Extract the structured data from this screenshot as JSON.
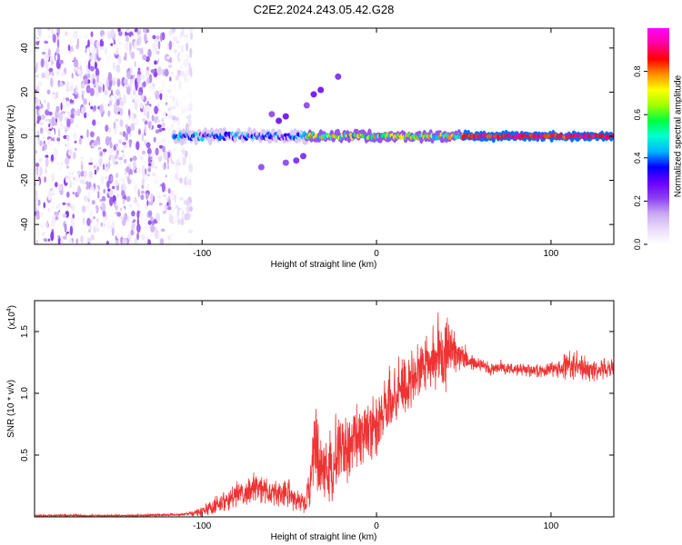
{
  "figure": {
    "title": "C2E2.2024.243.05.42.G28"
  },
  "chart_data": [
    {
      "type": "heatmap",
      "title": "C2E2.2024.243.05.42.G28",
      "xlabel": "Height of straight line (km)",
      "ylabel": "Frequency (Hz)",
      "xlim": [
        -196,
        136
      ],
      "ylim": [
        -49,
        49
      ],
      "x_ticks": [
        -100,
        0,
        100
      ],
      "y_ticks": [
        -40,
        -20,
        0,
        20,
        40
      ],
      "grid": false,
      "colorbar": {
        "label": "Normalized spectral amplitude",
        "range": [
          0,
          1
        ],
        "ticks": [
          "0.0",
          "0.2",
          "0.4",
          "0.6",
          "0.8"
        ],
        "colormap": [
          "#ffffff",
          "#e9dcfa",
          "#c8a8f2",
          "#8a3ff0",
          "#6a00ff",
          "#0000ff",
          "#00b4ff",
          "#00ffd0",
          "#00ff40",
          "#a0ff00",
          "#ffff00",
          "#ff9000",
          "#ff0000",
          "#ff00a0",
          "#ff00ff"
        ]
      },
      "regions": [
        {
          "name": "noise",
          "x_range": [
            -196,
            -106
          ],
          "y_range": [
            -49,
            49
          ],
          "amplitude": [
            0.0,
            0.22
          ]
        },
        {
          "name": "carrier-weak",
          "x_range": [
            -116,
            -40
          ],
          "frequency_hz": 0,
          "amplitude": [
            0.2,
            0.5
          ]
        },
        {
          "name": "carrier-mid",
          "x_range": [
            -40,
            50
          ],
          "frequency_hz": 0,
          "amplitude": [
            0.4,
            0.8
          ]
        },
        {
          "name": "carrier-strong",
          "x_range": [
            50,
            136
          ],
          "frequency_hz": 0,
          "amplitude": [
            0.8,
            0.95
          ]
        }
      ],
      "features": [
        {
          "x": -60,
          "y": 10,
          "amplitude": 0.2
        },
        {
          "x": -56,
          "y": 7,
          "amplitude": 0.25
        },
        {
          "x": -52,
          "y": 9,
          "amplitude": 0.25
        },
        {
          "x": -40,
          "y": 14,
          "amplitude": 0.2
        },
        {
          "x": -36,
          "y": 19,
          "amplitude": 0.25
        },
        {
          "x": -32,
          "y": 21,
          "amplitude": 0.25
        },
        {
          "x": -22,
          "y": 27,
          "amplitude": 0.22
        },
        {
          "x": -66,
          "y": -14,
          "amplitude": 0.2
        },
        {
          "x": -52,
          "y": -12,
          "amplitude": 0.2
        },
        {
          "x": -46,
          "y": -11,
          "amplitude": 0.22
        },
        {
          "x": -42,
          "y": -9,
          "amplitude": 0.22
        }
      ]
    },
    {
      "type": "line",
      "xlabel": "Height of straight line (km)",
      "ylabel": "SNR (10 * v/v)",
      "y_multiplier": "(x10",
      "y_multiplier_exponent": "4",
      "y_multiplier_close": ")",
      "xlim": [
        -196,
        136
      ],
      "ylim": [
        0,
        1.75
      ],
      "x_ticks": [
        -100,
        0,
        100
      ],
      "y_ticks": [
        "0.5",
        "1.0",
        "1.5"
      ],
      "grid": false,
      "series": [
        {
          "color": "#ee3333",
          "x": [
            -196,
            -140,
            -110,
            -100,
            -90,
            -80,
            -70,
            -60,
            -50,
            -45,
            -40,
            -35,
            -30,
            -25,
            -20,
            -15,
            -10,
            -5,
            0,
            5,
            10,
            15,
            20,
            25,
            30,
            35,
            40,
            45,
            50,
            55,
            60,
            65,
            70,
            75,
            80,
            90,
            100,
            110,
            115,
            120,
            125,
            130,
            136
          ],
          "mean": [
            0.01,
            0.01,
            0.02,
            0.04,
            0.1,
            0.18,
            0.22,
            0.2,
            0.18,
            0.12,
            0.12,
            0.55,
            0.3,
            0.45,
            0.55,
            0.6,
            0.65,
            0.7,
            0.75,
            0.85,
            0.95,
            1.05,
            1.1,
            1.2,
            1.25,
            1.3,
            1.3,
            1.35,
            1.3,
            1.25,
            1.23,
            1.2,
            1.2,
            1.2,
            1.2,
            1.18,
            1.2,
            1.22,
            1.23,
            1.2,
            1.18,
            1.2,
            1.2
          ],
          "spread": [
            0.01,
            0.01,
            0.01,
            0.04,
            0.09,
            0.1,
            0.12,
            0.12,
            0.12,
            0.06,
            0.12,
            0.35,
            0.25,
            0.35,
            0.3,
            0.3,
            0.25,
            0.25,
            0.25,
            0.25,
            0.25,
            0.3,
            0.25,
            0.25,
            0.2,
            0.25,
            0.3,
            0.2,
            0.1,
            0.06,
            0.05,
            0.05,
            0.05,
            0.05,
            0.05,
            0.05,
            0.06,
            0.1,
            0.1,
            0.1,
            0.1,
            0.08,
            0.06
          ]
        }
      ]
    }
  ]
}
